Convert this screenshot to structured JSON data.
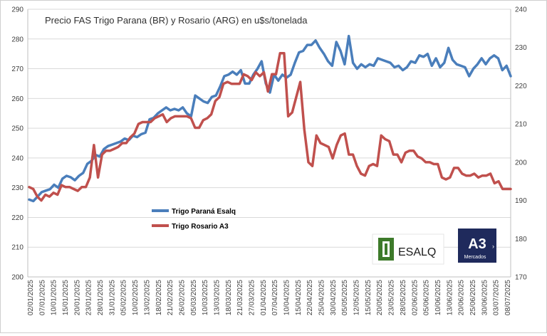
{
  "chart_data": {
    "type": "line",
    "title": "Precio FAS Trigo Parana (BR) y Rosario (ARG) en u$s/tonelada",
    "xlabel": "",
    "ylabel_left": "",
    "ylabel_right": "",
    "ylim_left": [
      200,
      290
    ],
    "ylim_right": [
      170,
      240
    ],
    "yticks_left": [
      "200",
      "210",
      "220",
      "230",
      "240",
      "250",
      "260",
      "270",
      "280",
      "290"
    ],
    "yticks_right": [
      "170",
      "180",
      "190",
      "200",
      "210",
      "220",
      "230",
      "240"
    ],
    "x_tick_labels": [
      "02/01/2025",
      "07/01/2025",
      "10/01/2025",
      "15/01/2025",
      "20/01/2025",
      "23/01/2025",
      "28/01/2025",
      "31/01/2025",
      "05/02/2025",
      "10/02/2025",
      "13/02/2025",
      "18/02/2025",
      "21/02/2025",
      "26/02/2025",
      "05/03/2025",
      "10/03/2025",
      "13/03/2025",
      "18/03/2025",
      "21/03/2025",
      "27/03/2025",
      "01/04/2025",
      "07/04/2025",
      "10/04/2025",
      "15/04/2025",
      "22/04/2025",
      "25/04/2025",
      "30/04/2025",
      "05/05/2025",
      "12/05/2025",
      "15/05/2025",
      "20/05/2025",
      "23/05/2025",
      "28/05/2025",
      "02/06/2025",
      "05/06/2025",
      "10/06/2025",
      "13/06/2025",
      "20/06/2025",
      "25/06/2025",
      "30/06/2025",
      "03/07/2025",
      "08/07/2025"
    ],
    "series": [
      {
        "name": "Trigo Paraná Esalq",
        "axis": "left",
        "color": "#4a7ebb",
        "values": [
          226,
          225.5,
          227,
          228.5,
          229,
          229.5,
          231,
          230,
          233,
          234,
          233.5,
          232.5,
          234,
          235,
          238,
          239,
          241,
          240.5,
          243,
          244,
          244.5,
          245,
          245.5,
          246.5,
          246,
          247.5,
          247,
          248,
          248.5,
          253,
          253.5,
          255,
          256,
          257,
          256,
          256.5,
          256,
          257,
          255,
          254,
          261,
          260,
          259,
          258.5,
          260.5,
          261,
          264,
          267.5,
          268,
          269,
          268,
          269.5,
          265,
          265,
          268,
          270,
          272.5,
          265,
          262,
          268,
          266,
          268,
          267,
          268,
          272,
          275.5,
          276,
          278,
          278,
          279.5,
          277,
          275,
          272.5,
          271,
          279,
          276,
          271.5,
          281,
          272,
          270,
          271.5,
          270.5,
          271.5,
          271,
          273.5,
          273,
          272.5,
          272,
          270.5,
          271,
          269.5,
          270.5,
          272.5,
          272,
          274.5,
          274,
          275,
          271,
          273.5,
          270.5,
          272,
          277,
          273,
          271.5,
          271,
          270.5,
          267.5,
          270,
          271.5,
          273.5,
          271.5,
          273.5,
          274.5,
          273.5,
          269.5,
          271,
          267.5
        ]
      },
      {
        "name": "Trigo Rosario A3",
        "axis": "right",
        "color": "#c0504d",
        "values": [
          193.5,
          193,
          191,
          190,
          191.5,
          191,
          192,
          191.5,
          194,
          193.5,
          193.5,
          193,
          192.5,
          193.5,
          193.5,
          196,
          204.5,
          196,
          202,
          203,
          203,
          203.5,
          204,
          205,
          205,
          206.5,
          207.5,
          210,
          210.5,
          210.5,
          210.5,
          211.5,
          212,
          212.5,
          210.5,
          211.5,
          212,
          212,
          212,
          212,
          211.5,
          209,
          209,
          211,
          211.5,
          212.5,
          216,
          217,
          220.5,
          221,
          220.5,
          220.5,
          220.5,
          223,
          222.5,
          221.5,
          223.5,
          222.5,
          223.5,
          218.5,
          223,
          223,
          228.5,
          228.5,
          212,
          213,
          217,
          221,
          208.5,
          200,
          199,
          207,
          205,
          204.5,
          204,
          201,
          204.5,
          207,
          207.5,
          202,
          202,
          199,
          197,
          196.5,
          199,
          199.5,
          199,
          207,
          206,
          205.5,
          202,
          202,
          200,
          202.5,
          203,
          203,
          201.5,
          201,
          200,
          200,
          199.5,
          199.5,
          196,
          195.5,
          196,
          198.5,
          198.5,
          197,
          196.5,
          196.5,
          197,
          196,
          196.5,
          196.5,
          197,
          194.5,
          195,
          193,
          193,
          193
        ]
      }
    ],
    "legend_position": "center-left"
  },
  "logos": {
    "esalq_text": "ESALQ",
    "a3_text": "A3",
    "a3_sub": "Mercados"
  }
}
